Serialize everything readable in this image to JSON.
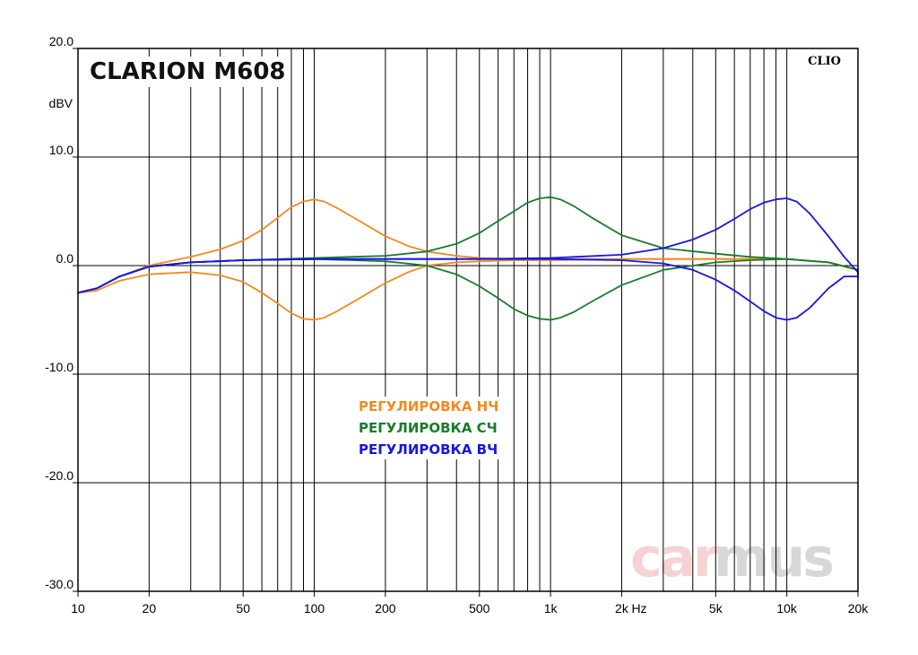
{
  "chart_data": {
    "type": "line",
    "title": "CLARION M608",
    "badge": "CLIO",
    "watermark": {
      "part1": "car",
      "part2": "mus"
    },
    "ylabel": "dBV",
    "xunit": "Hz",
    "xscale": "log",
    "xlim": [
      10,
      20000
    ],
    "ylim": [
      -30,
      20
    ],
    "grid": true,
    "legend_position": "center",
    "yticks": [
      {
        "value": 20,
        "label": "20.0"
      },
      {
        "value": 10,
        "label": "10.0"
      },
      {
        "value": 0,
        "label": "0.0"
      },
      {
        "value": -10,
        "label": "-10.0"
      },
      {
        "value": -20,
        "label": "-20.0"
      },
      {
        "value": -30,
        "label": "-30.0"
      }
    ],
    "xticks": [
      {
        "value": 10,
        "label": "10"
      },
      {
        "value": 20,
        "label": "20"
      },
      {
        "value": 50,
        "label": "50"
      },
      {
        "value": 100,
        "label": "100"
      },
      {
        "value": 200,
        "label": "200"
      },
      {
        "value": 500,
        "label": "500"
      },
      {
        "value": 1000,
        "label": "1k"
      },
      {
        "value": 2000,
        "label": "2k"
      },
      {
        "value": 5000,
        "label": "5k"
      },
      {
        "value": 10000,
        "label": "10k"
      },
      {
        "value": 20000,
        "label": "20k"
      }
    ],
    "series": [
      {
        "name": "РЕГУЛИРОВКА НЧ",
        "color": "#f28a1e",
        "curves": [
          {
            "x": [
              10,
              12,
              15,
              20,
              30,
              40,
              50,
              60,
              70,
              80,
              90,
              100,
              110,
              125,
              150,
              200,
              250,
              300,
              400,
              500,
              700,
              1000,
              2000,
              5000,
              10000,
              15000,
              20000,
              22000
            ],
            "y": [
              -2.5,
              -2.1,
              -1.0,
              0.0,
              0.8,
              1.5,
              2.3,
              3.3,
              4.4,
              5.4,
              5.9,
              6.1,
              5.9,
              5.3,
              4.3,
              2.7,
              1.8,
              1.3,
              0.9,
              0.7,
              0.6,
              0.6,
              0.6,
              0.6,
              0.6,
              0.3,
              -0.4,
              -0.8
            ]
          },
          {
            "x": [
              10,
              12,
              15,
              20,
              30,
              40,
              50,
              60,
              70,
              80,
              90,
              100,
              110,
              125,
              150,
              200,
              250,
              300,
              400,
              500,
              700,
              1000,
              2000,
              5000,
              10000,
              15000,
              20000,
              22000
            ],
            "y": [
              -2.5,
              -2.3,
              -1.4,
              -0.8,
              -0.6,
              -0.9,
              -1.5,
              -2.5,
              -3.5,
              -4.4,
              -4.9,
              -5.0,
              -4.8,
              -4.2,
              -3.2,
              -1.6,
              -0.6,
              0.0,
              0.3,
              0.4,
              0.5,
              0.5,
              0.6,
              0.6,
              0.6,
              0.3,
              -0.4,
              -0.8
            ]
          }
        ]
      },
      {
        "name": "РЕГУЛИРОВКА СЧ",
        "color": "#1b7a2e",
        "curves": [
          {
            "x": [
              10,
              12,
              15,
              20,
              30,
              50,
              100,
              200,
              300,
              400,
              500,
              600,
              700,
              800,
              900,
              1000,
              1100,
              1250,
              1500,
              2000,
              3000,
              5000,
              7000,
              10000,
              15000,
              20000,
              22000
            ],
            "y": [
              -2.5,
              -2.1,
              -1.0,
              -0.1,
              0.3,
              0.5,
              0.7,
              0.9,
              1.3,
              2.0,
              3.0,
              4.1,
              5.0,
              5.8,
              6.2,
              6.3,
              6.1,
              5.5,
              4.4,
              2.8,
              1.6,
              1.1,
              0.8,
              0.6,
              0.3,
              -0.4,
              -0.8
            ]
          },
          {
            "x": [
              10,
              12,
              15,
              20,
              30,
              50,
              100,
              200,
              300,
              400,
              500,
              600,
              700,
              800,
              900,
              1000,
              1100,
              1250,
              1500,
              2000,
              3000,
              5000,
              7000,
              10000,
              15000,
              20000,
              22000
            ],
            "y": [
              -2.5,
              -2.1,
              -1.0,
              -0.1,
              0.3,
              0.5,
              0.6,
              0.4,
              0.0,
              -0.8,
              -1.9,
              -3.0,
              -4.0,
              -4.6,
              -4.9,
              -5.0,
              -4.8,
              -4.3,
              -3.3,
              -1.8,
              -0.4,
              0.3,
              0.5,
              0.6,
              0.3,
              -0.4,
              -0.8
            ]
          }
        ]
      },
      {
        "name": "РЕГУЛИРОВКА ВЧ",
        "color": "#1616e0",
        "curves": [
          {
            "x": [
              10,
              12,
              15,
              20,
              30,
              50,
              100,
              200,
              500,
              1000,
              2000,
              3000,
              4000,
              5000,
              6000,
              7000,
              8000,
              9000,
              10000,
              11000,
              12500,
              15000,
              17500,
              20000,
              22000
            ],
            "y": [
              -2.5,
              -2.1,
              -1.0,
              -0.1,
              0.3,
              0.5,
              0.6,
              0.6,
              0.6,
              0.7,
              1.0,
              1.6,
              2.4,
              3.3,
              4.3,
              5.2,
              5.8,
              6.1,
              6.2,
              5.9,
              4.8,
              2.7,
              0.8,
              -0.6,
              -1.1
            ]
          },
          {
            "x": [
              10,
              12,
              15,
              20,
              30,
              50,
              100,
              200,
              500,
              1000,
              2000,
              3000,
              4000,
              5000,
              6000,
              7000,
              8000,
              9000,
              10000,
              11000,
              12500,
              15000,
              17500,
              20000,
              22000
            ],
            "y": [
              -2.5,
              -2.1,
              -1.0,
              -0.1,
              0.3,
              0.5,
              0.6,
              0.6,
              0.6,
              0.6,
              0.5,
              0.2,
              -0.4,
              -1.3,
              -2.3,
              -3.3,
              -4.2,
              -4.8,
              -5.0,
              -4.8,
              -3.9,
              -2.1,
              -1.0,
              -1.0,
              -1.1
            ]
          }
        ]
      }
    ]
  }
}
